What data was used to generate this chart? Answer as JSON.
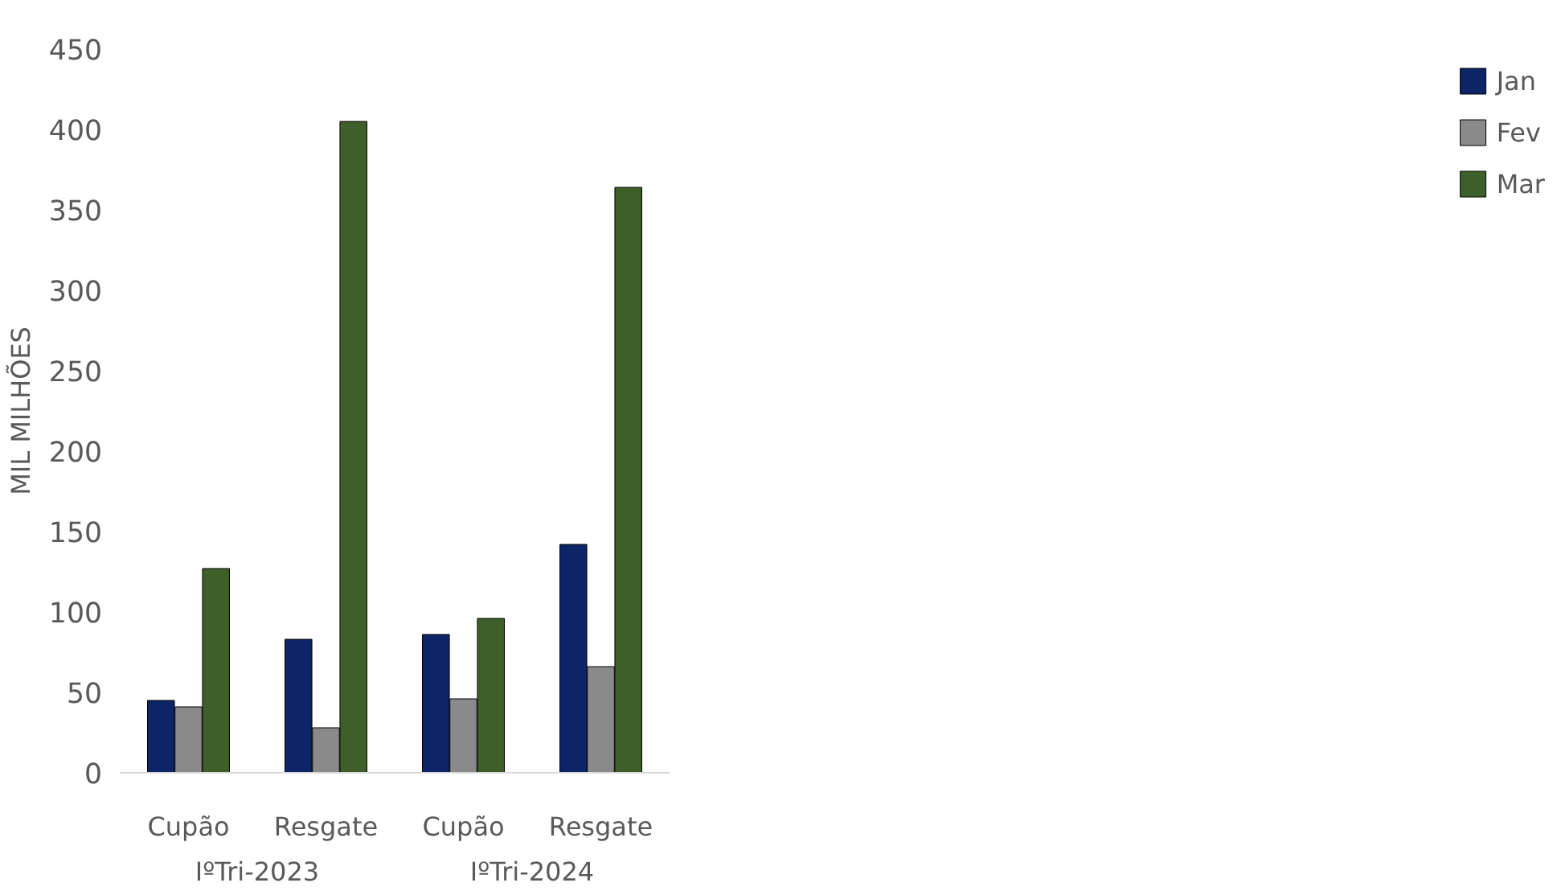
{
  "chart_data": {
    "type": "bar",
    "ylabel": "MIL MILHÕES",
    "categories": [
      "Cupão",
      "Resgate",
      "Cupão",
      "Resgate"
    ],
    "annotations": [
      "IºTri-2023",
      "IºTri-2024"
    ],
    "series": [
      {
        "name": "Jan",
        "color": "#0d2466",
        "values": [
          45,
          83,
          86,
          142
        ]
      },
      {
        "name": "Fev",
        "color": "#8a8a8a",
        "values": [
          41,
          28,
          46,
          66
        ]
      },
      {
        "name": "Mar",
        "color": "#3e5f29",
        "values": [
          127,
          405,
          96,
          364
        ]
      }
    ],
    "ylim": [
      0,
      450
    ],
    "yticks": [
      0,
      50,
      100,
      150,
      200,
      250,
      300,
      350,
      400,
      450
    ],
    "grid": false,
    "legend": "right"
  }
}
